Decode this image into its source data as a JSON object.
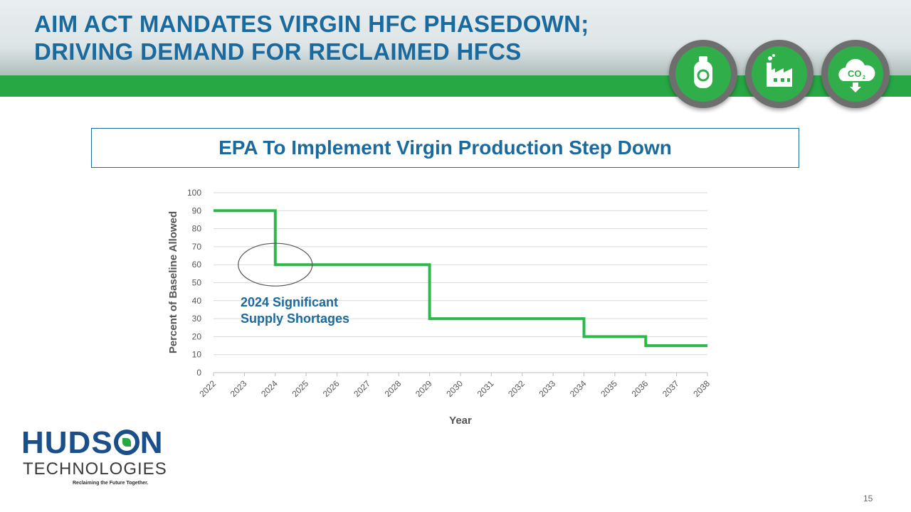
{
  "header": {
    "title_line1": "AIM ACT MANDATES VIRGIN HFC PHASEDOWN;",
    "title_line2": "DRIVING DEMAND FOR RECLAIMED HFCS",
    "icons": [
      "refrigerant-recycle-icon",
      "factory-icon",
      "co2-cloud-icon"
    ],
    "accent_color": "#27a844",
    "title_color": "#1b6a9e"
  },
  "subtitle": "EPA To Implement Virgin Production Step Down",
  "chart_data": {
    "type": "line",
    "step": true,
    "xlabel": "Year",
    "ylabel": "Percent of Baseline Allowed",
    "categories": [
      "2022",
      "2023",
      "2024",
      "2025",
      "2026",
      "2027",
      "2028",
      "2029",
      "2030",
      "2031",
      "2032",
      "2033",
      "2034",
      "2035",
      "2036",
      "2037",
      "2038"
    ],
    "ylim": [
      0,
      100
    ],
    "yticks": [
      0,
      10,
      20,
      30,
      40,
      50,
      60,
      70,
      80,
      90,
      100
    ],
    "grid": true,
    "series": [
      {
        "color": "#2db84b",
        "points": [
          [
            2022,
            90
          ],
          [
            2024,
            90
          ],
          [
            2024,
            60
          ],
          [
            2029,
            60
          ],
          [
            2029,
            30
          ],
          [
            2034,
            30
          ],
          [
            2034,
            20
          ],
          [
            2036,
            20
          ],
          [
            2036,
            15
          ],
          [
            2038,
            15
          ]
        ]
      }
    ],
    "annotation": {
      "text_line1": "2024 Significant",
      "text_line2": "Supply Shortages",
      "x": 2024,
      "y": 60,
      "color": "#1b6a9e"
    }
  },
  "logo": {
    "name_part1": "HUDS",
    "name_part2": "N",
    "subtitle": "TECHNOLOGIES",
    "tagline": "Reclaiming the Future Together."
  },
  "page_number": "15"
}
